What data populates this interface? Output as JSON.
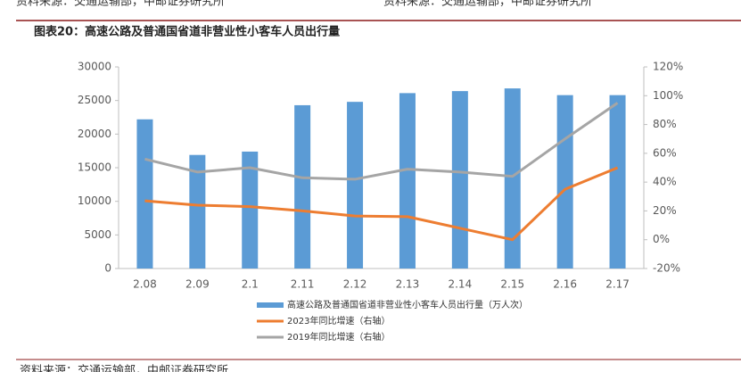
{
  "chart_data": {
    "type": "bar",
    "header_left": "资料来源：交通运输部，中邮证券研究所",
    "header_right": "资料来源：交通运输部，中邮证券研究所",
    "title": "图表20：高速公路及普通国省道非营业性小客车人员出行量",
    "source": "资料来源：交通运输部，中邮证券研究所",
    "categories": [
      "2.08",
      "2.09",
      "2.1",
      "2.11",
      "2.12",
      "2.13",
      "2.14",
      "2.15",
      "2.16",
      "2.17"
    ],
    "series": [
      {
        "name": "高速公路及普通国省道非营业性小客车人员出行量（万人次）",
        "type": "bar",
        "color": "#5b9bd5",
        "values": [
          22200,
          16900,
          17400,
          24300,
          24800,
          26100,
          26400,
          26800,
          25800,
          25800
        ]
      },
      {
        "name": "2023年同比增速（右轴）",
        "type": "line",
        "axis": "y2",
        "color": "#ed7d31",
        "values": [
          27,
          24,
          23,
          20,
          16.5,
          16,
          8,
          0,
          35,
          50
        ]
      },
      {
        "name": "2019年同比增速（右轴）",
        "type": "line",
        "axis": "y2",
        "color": "#a5a5a5",
        "values": [
          56,
          47,
          50,
          43,
          42,
          49,
          47,
          44,
          70,
          95
        ]
      }
    ],
    "ylim": [
      0,
      30000
    ],
    "yticks": [
      0,
      5000,
      10000,
      15000,
      20000,
      25000,
      30000
    ],
    "y2lim": [
      -20,
      120
    ],
    "y2ticks": [
      {
        "value": -20,
        "label": "-20%"
      },
      {
        "value": 0,
        "label": "0%"
      },
      {
        "value": 20,
        "label": "20%"
      },
      {
        "value": 40,
        "label": "40%"
      },
      {
        "value": 60,
        "label": "60%"
      },
      {
        "value": 80,
        "label": "80%"
      },
      {
        "value": 100,
        "label": "100%"
      },
      {
        "value": 120,
        "label": "120%"
      }
    ],
    "legend": "bottom"
  }
}
